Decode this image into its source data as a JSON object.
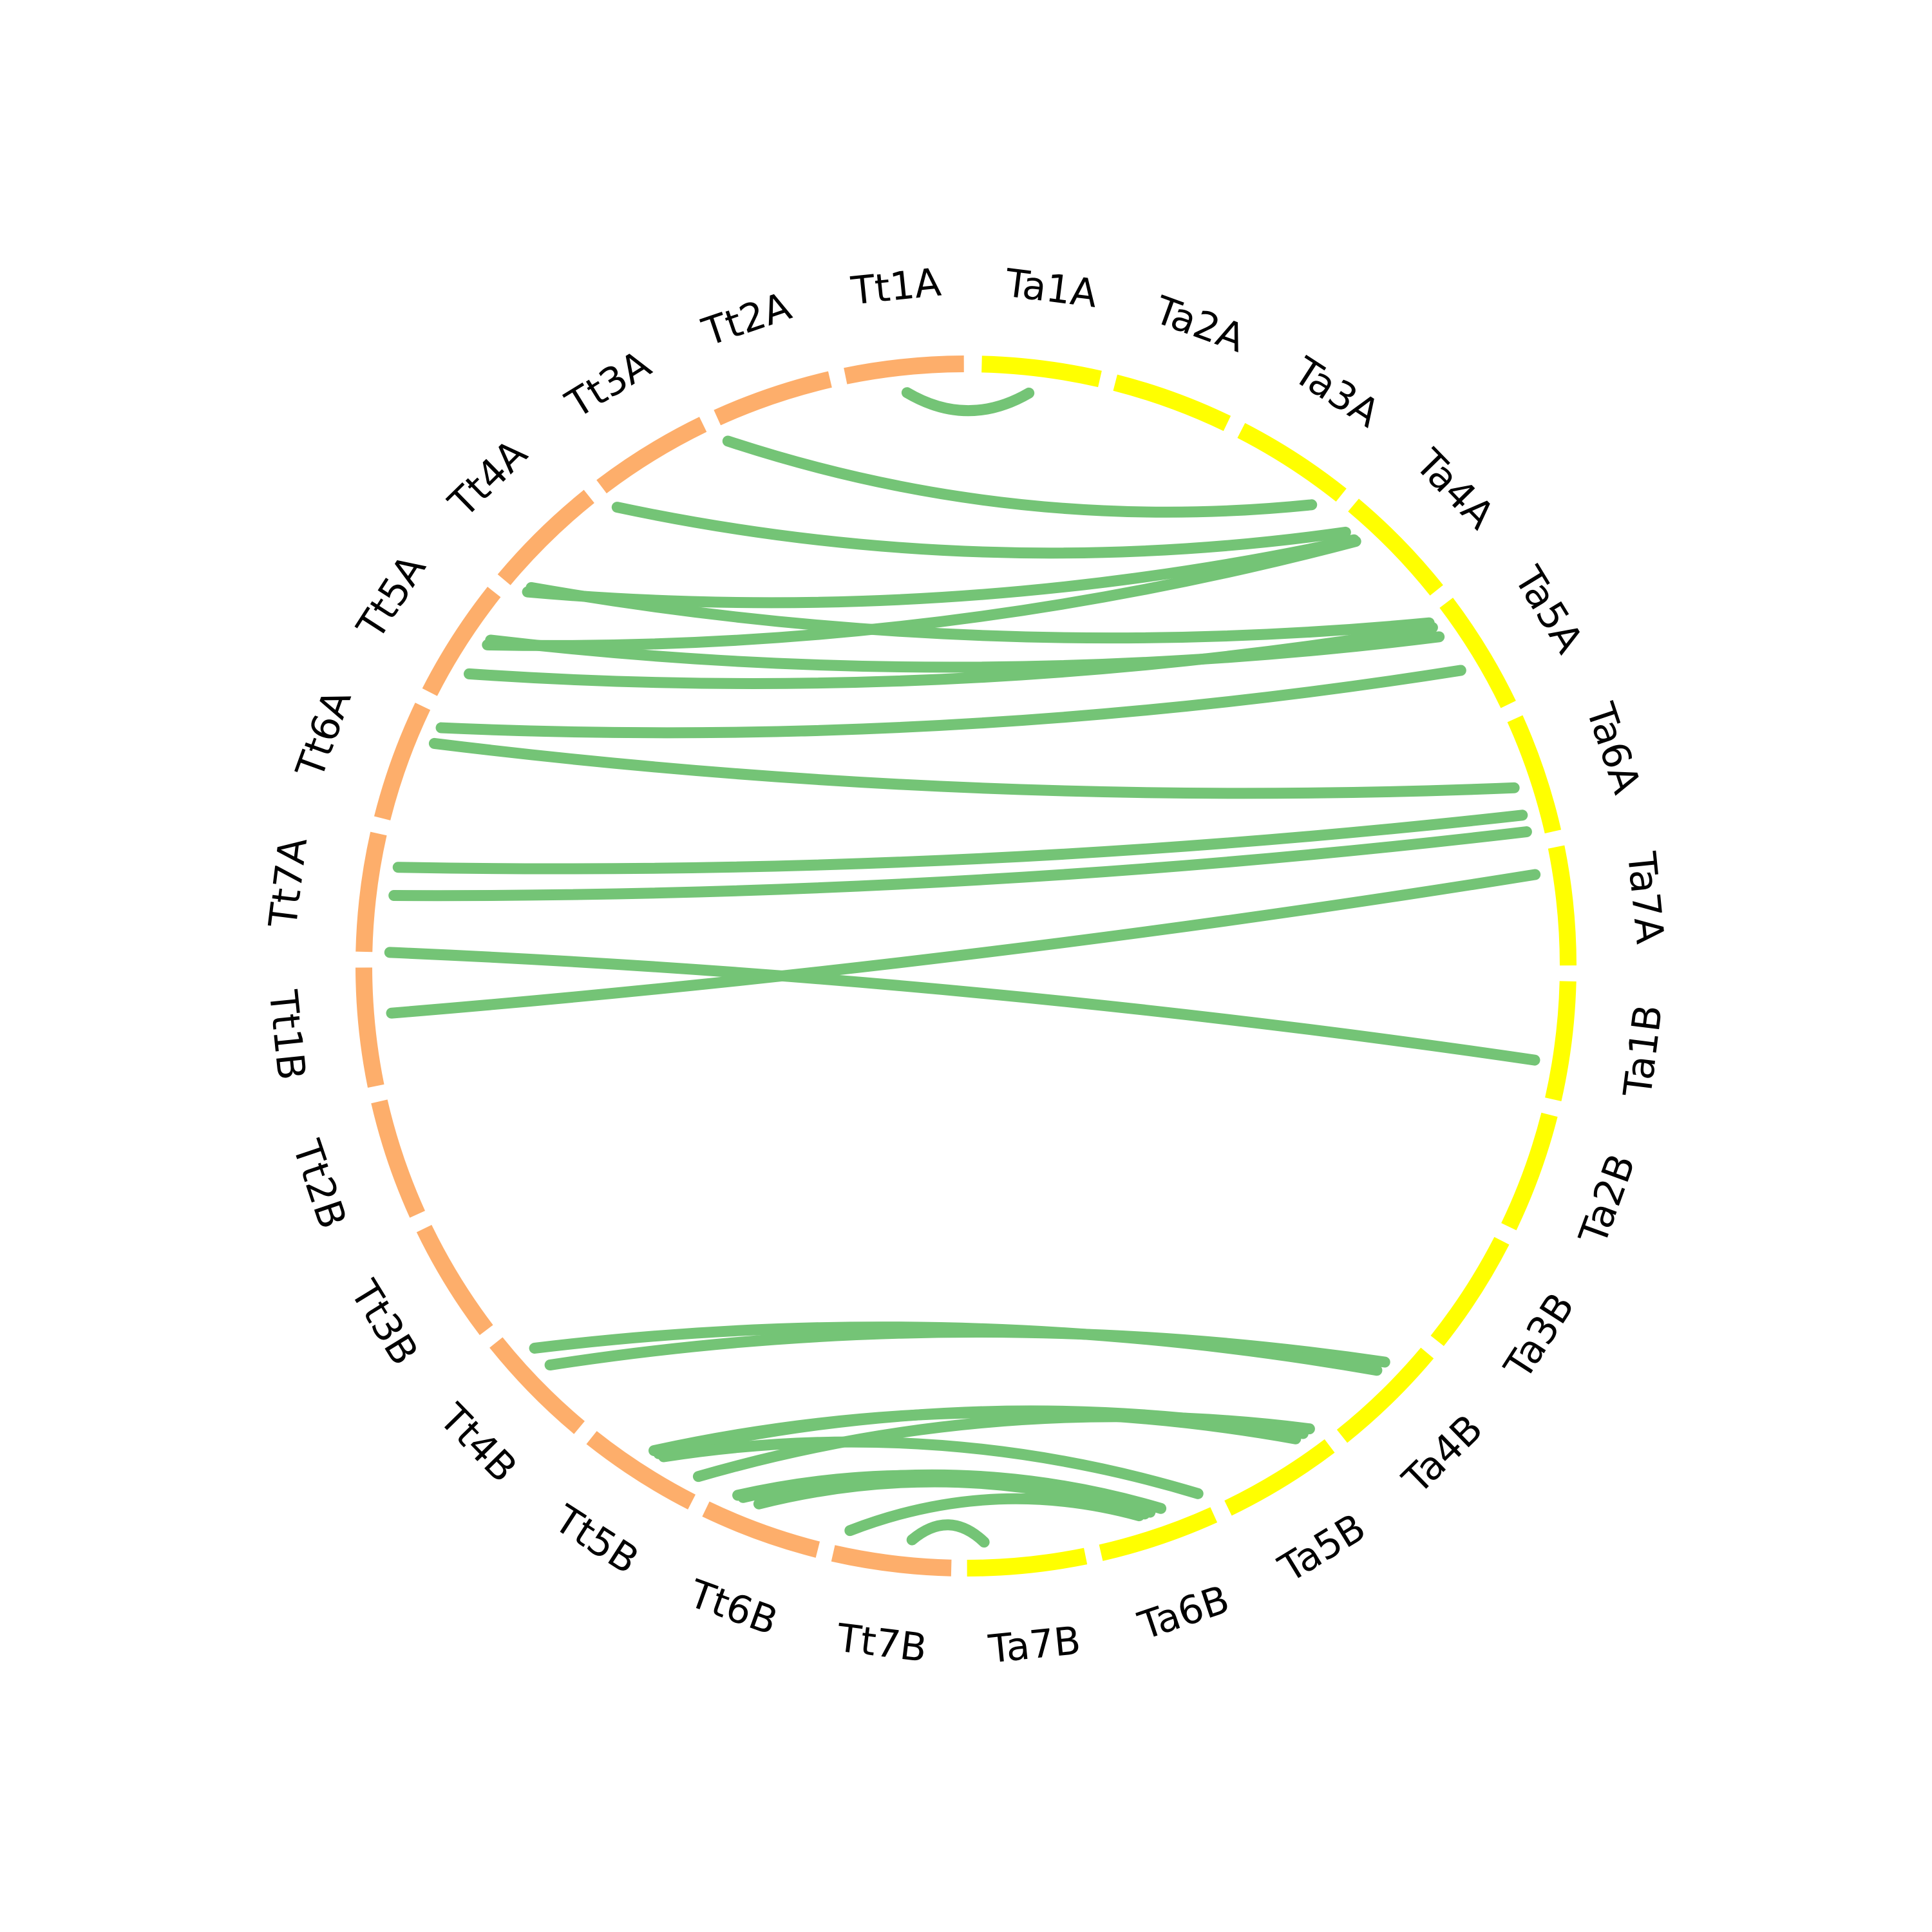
{
  "colors": {
    "tt": "#fdae6b",
    "ta": "#ffff00",
    "link": "#74c476"
  },
  "chromosomes": [
    {
      "name": "Ta1A",
      "genome": "ta"
    },
    {
      "name": "Ta2A",
      "genome": "ta"
    },
    {
      "name": "Ta3A",
      "genome": "ta"
    },
    {
      "name": "Ta4A",
      "genome": "ta"
    },
    {
      "name": "Ta5A",
      "genome": "ta"
    },
    {
      "name": "Ta6A",
      "genome": "ta"
    },
    {
      "name": "Ta7A",
      "genome": "ta"
    },
    {
      "name": "Ta1B",
      "genome": "ta"
    },
    {
      "name": "Ta2B",
      "genome": "ta"
    },
    {
      "name": "Ta3B",
      "genome": "ta"
    },
    {
      "name": "Ta4B",
      "genome": "ta"
    },
    {
      "name": "Ta5B",
      "genome": "ta"
    },
    {
      "name": "Ta6B",
      "genome": "ta"
    },
    {
      "name": "Ta7B",
      "genome": "ta"
    },
    {
      "name": "Tt7B",
      "genome": "tt"
    },
    {
      "name": "Tt6B",
      "genome": "tt"
    },
    {
      "name": "Tt5B",
      "genome": "tt"
    },
    {
      "name": "Tt4B",
      "genome": "tt"
    },
    {
      "name": "Tt3B",
      "genome": "tt"
    },
    {
      "name": "Tt2B",
      "genome": "tt"
    },
    {
      "name": "Tt1B",
      "genome": "tt"
    },
    {
      "name": "Tt7A",
      "genome": "tt"
    },
    {
      "name": "Tt6A",
      "genome": "tt"
    },
    {
      "name": "Tt5A",
      "genome": "tt"
    },
    {
      "name": "Tt4A",
      "genome": "tt"
    },
    {
      "name": "Tt3A",
      "genome": "tt"
    },
    {
      "name": "Tt2A",
      "genome": "tt"
    },
    {
      "name": "Tt1A",
      "genome": "tt"
    }
  ],
  "links": [
    {
      "from": "Tt1A",
      "from_pos": 0.5,
      "to": "Ta1A",
      "to_pos": 0.42
    },
    {
      "from": "Tt2A",
      "from_pos": 0.0,
      "to": "Ta3A",
      "to_pos": 0.85
    },
    {
      "from": "Tt3A",
      "from_pos": 0.0,
      "to": "Ta4A",
      "to_pos": 0.1
    },
    {
      "from": "Tt4A",
      "from_pos": 0.05,
      "to": "Ta4A",
      "to_pos": 0.2
    },
    {
      "from": "Tt4A",
      "from_pos": 0.1,
      "to": "Ta5A",
      "to_pos": 0.05
    },
    {
      "from": "Tt5A",
      "from_pos": 0.6,
      "to": "Ta4A",
      "to_pos": 0.22
    },
    {
      "from": "Tt5A",
      "from_pos": 0.3,
      "to": "Ta5A",
      "to_pos": 0.1
    },
    {
      "from": "Tt5A",
      "from_pos": 0.65,
      "to": "Ta5A",
      "to_pos": 0.2
    },
    {
      "from": "Tt6A",
      "from_pos": 0.9,
      "to": "Ta5A",
      "to_pos": 0.55
    },
    {
      "from": "Tt6A",
      "from_pos": 0.75,
      "to": "Ta6A",
      "to_pos": 0.55
    },
    {
      "from": "Tt7A",
      "from_pos": 0.75,
      "to": "Ta6A",
      "to_pos": 0.8
    },
    {
      "from": "Tt7A",
      "from_pos": 0.5,
      "to": "Ta6A",
      "to_pos": 0.95
    },
    {
      "from": "Tt1B",
      "from_pos": 0.6,
      "to": "Ta7A",
      "to_pos": 0.2
    },
    {
      "from": "Tt7A",
      "from_pos": 0.0,
      "to": "Ta1B",
      "to_pos": 0.7
    },
    {
      "from": "Tt4B",
      "from_pos": 0.55,
      "to": "Ta4B",
      "to_pos": 0.3
    },
    {
      "from": "Tt4B",
      "from_pos": 0.75,
      "to": "Ta4B",
      "to_pos": 0.4
    },
    {
      "from": "Tt5B",
      "from_pos": 0.05,
      "to": "Ta5B",
      "to_pos": 0.05
    },
    {
      "from": "Tt5B",
      "from_pos": 0.45,
      "to": "Ta5B",
      "to_pos": 0.12
    },
    {
      "from": "Tt5B",
      "from_pos": 0.5,
      "to": "Ta5B",
      "to_pos": 0.2
    },
    {
      "from": "Tt5B",
      "from_pos": 0.4,
      "to": "Ta6B",
      "to_pos": 0.05
    },
    {
      "from": "Tt6B",
      "from_pos": 0.75,
      "to": "Ta6B",
      "to_pos": 0.4
    },
    {
      "from": "Tt6B",
      "from_pos": 0.8,
      "to": "Ta6B",
      "to_pos": 0.5
    },
    {
      "from": "Tt6B",
      "from_pos": 0.6,
      "to": "Ta6B",
      "to_pos": 0.55
    },
    {
      "from": "Tt7B",
      "from_pos": 0.9,
      "to": "Ta6B",
      "to_pos": 0.6
    },
    {
      "from": "Tt7B",
      "from_pos": 0.35,
      "to": "Ta7B",
      "to_pos": 0.85
    }
  ]
}
